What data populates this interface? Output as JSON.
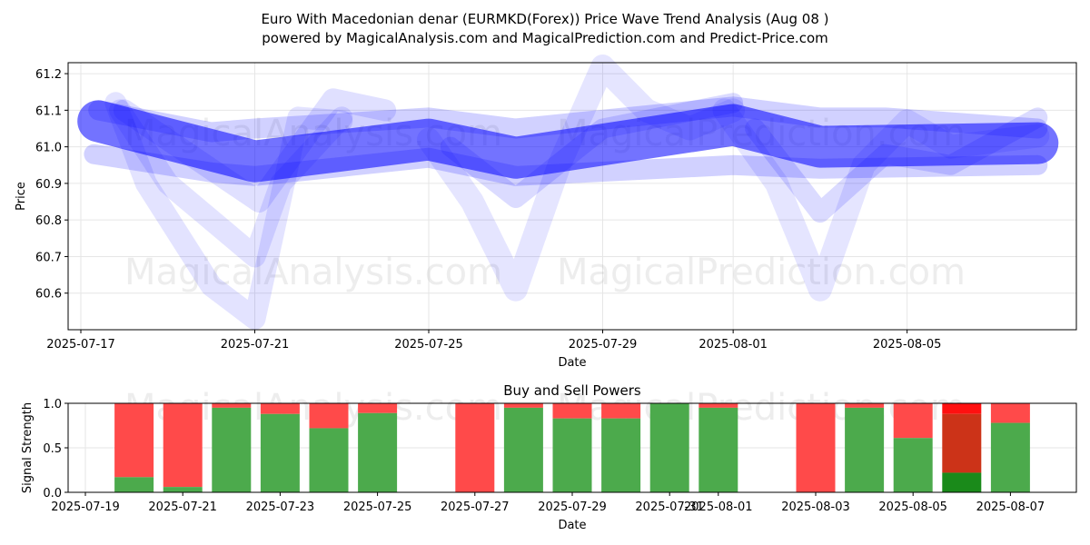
{
  "chart_data": [
    {
      "type": "line",
      "title_line1": "Euro With Macedonian denar (EURMKD(Forex)) Price Wave Trend Analysis (Aug 08 )",
      "title_line2": "powered by MagicalAnalysis.com and MagicalPrediction.com and Predict-Price.com",
      "xlabel": "Date",
      "ylabel": "Price",
      "ylim": [
        60.5,
        61.23
      ],
      "x_range_days": [
        0,
        22.6
      ],
      "x_ticks": [
        {
          "day": 0,
          "label": "2025-07-17"
        },
        {
          "day": 4,
          "label": "2025-07-21"
        },
        {
          "day": 8,
          "label": "2025-07-25"
        },
        {
          "day": 12,
          "label": "2025-07-29"
        },
        {
          "day": 15,
          "label": "2025-08-01"
        },
        {
          "day": 19,
          "label": "2025-08-05"
        }
      ],
      "y_ticks": [
        {
          "value": 60.6,
          "label": "60.6"
        },
        {
          "value": 60.7,
          "label": "60.7"
        },
        {
          "value": 60.8,
          "label": "60.8"
        },
        {
          "value": 60.9,
          "label": "60.9"
        },
        {
          "value": 61.0,
          "label": "61.0"
        },
        {
          "value": 61.1,
          "label": "61.1"
        },
        {
          "value": 61.2,
          "label": "61.2"
        }
      ],
      "grid": true,
      "color": "#0000ff",
      "watermarks": [
        "MagicalAnalysis.com",
        "MagicalPrediction.com"
      ],
      "series": [
        {
          "name": "main-trend",
          "x": [
            0.4,
            4,
            8,
            10,
            15,
            17,
            22
          ],
          "y": [
            61.07,
            60.96,
            61.02,
            60.97,
            61.06,
            61.0,
            61.01
          ]
        },
        {
          "name": "wave-1",
          "x": [
            0.8,
            1.5,
            3,
            4,
            5,
            6
          ],
          "y": [
            61.12,
            60.9,
            60.62,
            60.53,
            61.08,
            61.07
          ]
        },
        {
          "name": "wave-2",
          "x": [
            0.9,
            2,
            3.5,
            4,
            4.6,
            6
          ],
          "y": [
            61.1,
            60.9,
            60.75,
            60.7,
            60.9,
            61.08
          ]
        },
        {
          "name": "wave-3",
          "x": [
            1,
            4.1,
            5.8,
            7
          ],
          "y": [
            61.1,
            60.85,
            61.13,
            61.1
          ]
        },
        {
          "name": "wave-4",
          "x": [
            8,
            9,
            10,
            11,
            12,
            13,
            14,
            15
          ],
          "y": [
            61.02,
            60.85,
            60.61,
            60.95,
            61.22,
            61.1,
            61.05,
            61.1
          ]
        },
        {
          "name": "wave-5",
          "x": [
            8.5,
            10,
            12,
            15
          ],
          "y": [
            61.0,
            60.86,
            61.05,
            61.12
          ]
        },
        {
          "name": "wave-6",
          "x": [
            14.8,
            16,
            17,
            18,
            19,
            20,
            22
          ],
          "y": [
            61.1,
            60.9,
            60.61,
            60.95,
            61.07,
            61.0,
            61.03
          ]
        },
        {
          "name": "wave-7",
          "x": [
            15.5,
            17,
            18.5,
            20,
            22
          ],
          "y": [
            61.05,
            60.82,
            60.98,
            60.95,
            61.08
          ]
        },
        {
          "name": "band-upper",
          "x": [
            0.4,
            3,
            4,
            8,
            10,
            15,
            17,
            18.5,
            22
          ],
          "y": [
            61.1,
            61.04,
            61.05,
            61.08,
            61.05,
            61.11,
            61.08,
            61.08,
            61.05
          ]
        },
        {
          "name": "band-lower",
          "x": [
            0.3,
            3,
            4,
            8,
            10,
            15,
            17,
            22
          ],
          "y": [
            60.98,
            60.93,
            60.92,
            60.97,
            60.92,
            60.95,
            60.94,
            60.95
          ]
        }
      ]
    },
    {
      "type": "bar",
      "title": "Buy and Sell Powers",
      "xlabel": "Date",
      "ylabel": "Signal Strength",
      "ylim": [
        0,
        1.0
      ],
      "x_range_days": [
        0,
        20.4
      ],
      "x_ticks": [
        {
          "day": 0,
          "label": "2025-07-19"
        },
        {
          "day": 2,
          "label": "2025-07-21"
        },
        {
          "day": 4,
          "label": "2025-07-23"
        },
        {
          "day": 6,
          "label": "2025-07-25"
        },
        {
          "day": 8,
          "label": "2025-07-27"
        },
        {
          "day": 10,
          "label": "2025-07-29"
        },
        {
          "day": 12,
          "label": "2025-07-31"
        },
        {
          "day": 13,
          "label": "2025-08-01"
        },
        {
          "day": 15,
          "label": "2025-08-03"
        },
        {
          "day": 17,
          "label": "2025-08-05"
        },
        {
          "day": 19,
          "label": "2025-08-07"
        }
      ],
      "y_ticks": [
        {
          "value": 0.0,
          "label": "0.0"
        },
        {
          "value": 0.5,
          "label": "0.5"
        },
        {
          "value": 1.0,
          "label": "1.0"
        }
      ],
      "buy_color": "#4caa4c",
      "sell_color": "#ff4a4a",
      "highlight_buy_color": "#1a8a1a",
      "highlight_sell_color": "#cc3318",
      "highlight_top_color": "#ff1010",
      "bars": [
        {
          "day": 1,
          "buy": 0.17
        },
        {
          "day": 2,
          "buy": 0.06
        },
        {
          "day": 3,
          "buy": 0.95
        },
        {
          "day": 4,
          "buy": 0.88
        },
        {
          "day": 5,
          "buy": 0.72
        },
        {
          "day": 6,
          "buy": 0.89
        },
        {
          "day": 8,
          "buy": 0.0
        },
        {
          "day": 9,
          "buy": 0.95
        },
        {
          "day": 10,
          "buy": 0.83
        },
        {
          "day": 11,
          "buy": 0.83
        },
        {
          "day": 12,
          "buy": 1.0
        },
        {
          "day": 13,
          "buy": 0.95
        },
        {
          "day": 15,
          "buy": 0.0
        },
        {
          "day": 16,
          "buy": 0.95
        },
        {
          "day": 17,
          "buy": 0.61
        },
        {
          "day": 18,
          "buy": 0.22,
          "highlight": true,
          "mid": 0.88
        },
        {
          "day": 19,
          "buy": 0.78
        }
      ]
    }
  ]
}
